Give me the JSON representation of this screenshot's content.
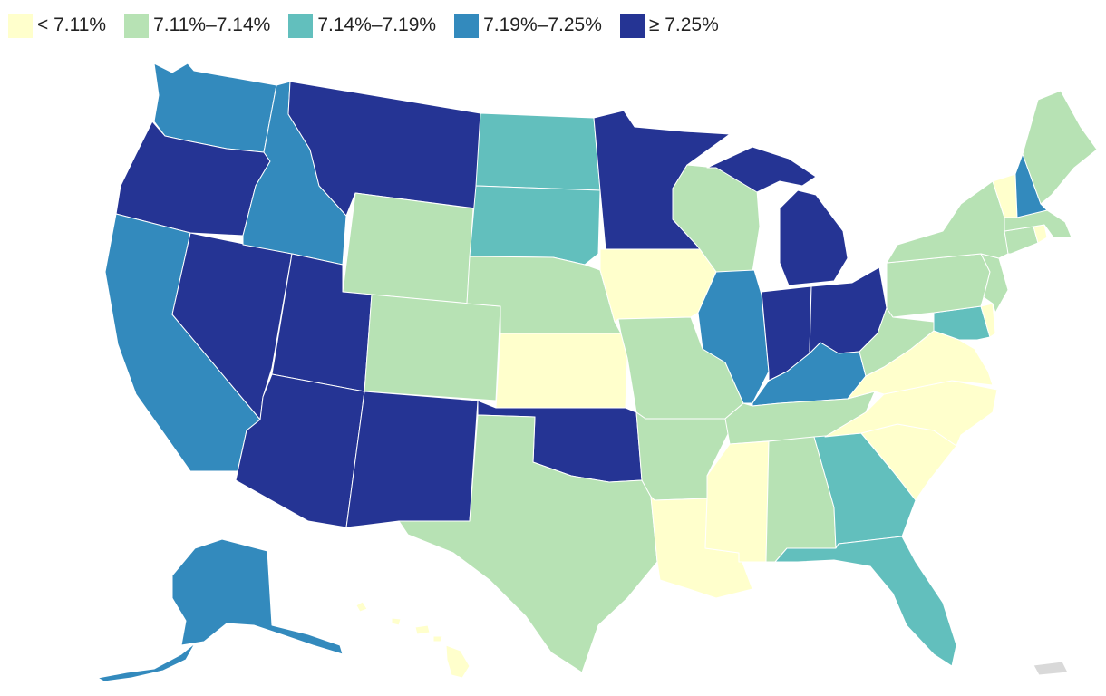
{
  "colors": {
    "lt_711": "#ffffcc",
    "711_714": "#b7e2b4",
    "714_719": "#62bfbd",
    "719_725": "#338abd",
    "ge_725": "#253494",
    "no_data": "#d9d9d9",
    "border": "#ffffff"
  },
  "legend": {
    "items": [
      {
        "key": "lt_711",
        "label": "< 7.11%"
      },
      {
        "key": "711_714",
        "label": "7.11%–7.14%"
      },
      {
        "key": "714_719",
        "label": "7.14%–7.19%"
      },
      {
        "key": "719_725",
        "label": "7.19%–7.25%"
      },
      {
        "key": "ge_725",
        "label": "≥ 7.25%"
      }
    ]
  },
  "states": [
    {
      "name": "Washington",
      "bin": "719_725"
    },
    {
      "name": "Oregon",
      "bin": "ge_725"
    },
    {
      "name": "California",
      "bin": "719_725"
    },
    {
      "name": "Nevada",
      "bin": "ge_725"
    },
    {
      "name": "Idaho",
      "bin": "719_725"
    },
    {
      "name": "Montana",
      "bin": "ge_725"
    },
    {
      "name": "Wyoming",
      "bin": "711_714"
    },
    {
      "name": "Utah",
      "bin": "ge_725"
    },
    {
      "name": "Arizona",
      "bin": "ge_725"
    },
    {
      "name": "Colorado",
      "bin": "711_714"
    },
    {
      "name": "New Mexico",
      "bin": "ge_725"
    },
    {
      "name": "North Dakota",
      "bin": "714_719"
    },
    {
      "name": "South Dakota",
      "bin": "714_719"
    },
    {
      "name": "Nebraska",
      "bin": "711_714"
    },
    {
      "name": "Kansas",
      "bin": "lt_711"
    },
    {
      "name": "Oklahoma",
      "bin": "ge_725"
    },
    {
      "name": "Texas",
      "bin": "711_714"
    },
    {
      "name": "Minnesota",
      "bin": "ge_725"
    },
    {
      "name": "Iowa",
      "bin": "lt_711"
    },
    {
      "name": "Missouri",
      "bin": "711_714"
    },
    {
      "name": "Arkansas",
      "bin": "711_714"
    },
    {
      "name": "Louisiana",
      "bin": "lt_711"
    },
    {
      "name": "Wisconsin",
      "bin": "711_714"
    },
    {
      "name": "Illinois",
      "bin": "719_725"
    },
    {
      "name": "Michigan",
      "bin": "ge_725"
    },
    {
      "name": "Indiana",
      "bin": "ge_725"
    },
    {
      "name": "Ohio",
      "bin": "ge_725"
    },
    {
      "name": "Kentucky",
      "bin": "719_725"
    },
    {
      "name": "Tennessee",
      "bin": "711_714"
    },
    {
      "name": "Mississippi",
      "bin": "lt_711"
    },
    {
      "name": "Alabama",
      "bin": "711_714"
    },
    {
      "name": "Georgia",
      "bin": "714_719"
    },
    {
      "name": "Florida",
      "bin": "714_719"
    },
    {
      "name": "South Carolina",
      "bin": "lt_711"
    },
    {
      "name": "North Carolina",
      "bin": "lt_711"
    },
    {
      "name": "Virginia",
      "bin": "lt_711"
    },
    {
      "name": "West Virginia",
      "bin": "711_714"
    },
    {
      "name": "Maryland",
      "bin": "714_719"
    },
    {
      "name": "Delaware",
      "bin": "lt_711"
    },
    {
      "name": "Pennsylvania",
      "bin": "711_714"
    },
    {
      "name": "New Jersey",
      "bin": "711_714"
    },
    {
      "name": "New York",
      "bin": "711_714"
    },
    {
      "name": "Connecticut",
      "bin": "711_714"
    },
    {
      "name": "Rhode Island",
      "bin": "lt_711"
    },
    {
      "name": "Massachusetts",
      "bin": "711_714"
    },
    {
      "name": "Vermont",
      "bin": "lt_711"
    },
    {
      "name": "New Hampshire",
      "bin": "719_725"
    },
    {
      "name": "Maine",
      "bin": "711_714"
    },
    {
      "name": "Alaska",
      "bin": "719_725"
    },
    {
      "name": "Hawaii",
      "bin": "lt_711"
    },
    {
      "name": "Puerto Rico",
      "bin": "no_data"
    }
  ]
}
